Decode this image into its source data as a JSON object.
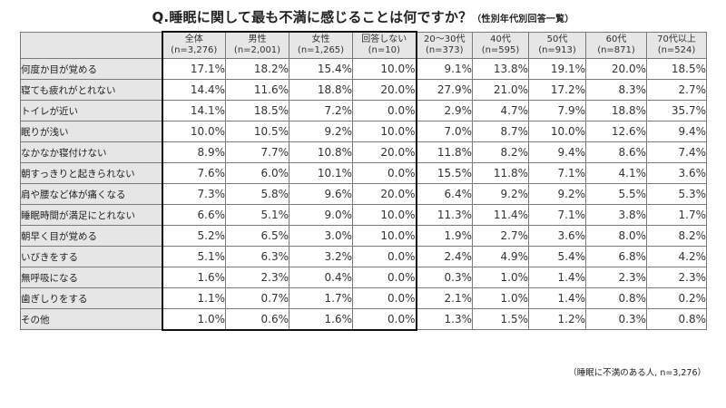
{
  "title": {
    "main": "Q.睡眠に関して最も不満に感じることは何ですか？",
    "sub": "（性別年代別回答一覧）"
  },
  "table": {
    "columns": [
      {
        "label": "全体",
        "n": "(n=3,276)"
      },
      {
        "label": "男性",
        "n": "(n=2,001)"
      },
      {
        "label": "女性",
        "n": "(n=1,265)"
      },
      {
        "label": "回答しない",
        "n": "(n=10)"
      },
      {
        "label": "20～30代",
        "n": "(n=373)"
      },
      {
        "label": "40代",
        "n": "(n=595)"
      },
      {
        "label": "50代",
        "n": "(n=913)"
      },
      {
        "label": "60代",
        "n": "(n=871)"
      },
      {
        "label": "70代以上",
        "n": "(n=524)"
      }
    ],
    "rows": [
      {
        "label": "何度か目が覚める",
        "values": [
          "17.1%",
          "18.2%",
          "15.4%",
          "10.0%",
          "9.1%",
          "13.8%",
          "19.1%",
          "20.0%",
          "18.5%"
        ]
      },
      {
        "label": "寝ても疲れがとれない",
        "values": [
          "14.4%",
          "11.6%",
          "18.8%",
          "20.0%",
          "27.9%",
          "21.0%",
          "17.2%",
          "8.3%",
          "2.7%"
        ]
      },
      {
        "label": "トイレが近い",
        "values": [
          "14.1%",
          "18.5%",
          "7.2%",
          "0.0%",
          "2.9%",
          "4.7%",
          "7.9%",
          "18.8%",
          "35.7%"
        ]
      },
      {
        "label": "眠りが浅い",
        "values": [
          "10.0%",
          "10.5%",
          "9.2%",
          "10.0%",
          "7.0%",
          "8.7%",
          "10.0%",
          "12.6%",
          "9.4%"
        ]
      },
      {
        "label": "なかなか寝付けない",
        "values": [
          "8.9%",
          "7.7%",
          "10.8%",
          "20.0%",
          "11.8%",
          "8.2%",
          "9.4%",
          "8.6%",
          "7.4%"
        ]
      },
      {
        "label": "朝すっきりと起きられない",
        "values": [
          "7.6%",
          "6.0%",
          "10.1%",
          "0.0%",
          "15.5%",
          "11.8%",
          "7.1%",
          "4.1%",
          "3.6%"
        ]
      },
      {
        "label": "肩や腰など体が痛くなる",
        "values": [
          "7.3%",
          "5.8%",
          "9.6%",
          "20.0%",
          "6.4%",
          "9.2%",
          "9.2%",
          "5.5%",
          "5.3%"
        ]
      },
      {
        "label": "睡眠時間が満足にとれない",
        "values": [
          "6.6%",
          "5.1%",
          "9.0%",
          "10.0%",
          "11.3%",
          "11.4%",
          "7.1%",
          "3.8%",
          "1.7%"
        ]
      },
      {
        "label": "朝早く目が覚める",
        "values": [
          "5.2%",
          "6.5%",
          "3.0%",
          "10.0%",
          "1.9%",
          "2.7%",
          "3.6%",
          "8.0%",
          "8.2%"
        ]
      },
      {
        "label": "いびきをする",
        "values": [
          "5.1%",
          "6.3%",
          "3.2%",
          "0.0%",
          "2.4%",
          "4.9%",
          "5.4%",
          "6.8%",
          "4.2%"
        ]
      },
      {
        "label": "無呼吸になる",
        "values": [
          "1.6%",
          "2.3%",
          "0.4%",
          "0.0%",
          "0.3%",
          "1.0%",
          "1.4%",
          "2.3%",
          "2.3%"
        ]
      },
      {
        "label": "歯ぎしりをする",
        "values": [
          "1.1%",
          "0.7%",
          "1.7%",
          "0.0%",
          "2.1%",
          "1.0%",
          "1.4%",
          "0.8%",
          "0.2%"
        ]
      },
      {
        "label": "その他",
        "values": [
          "1.0%",
          "0.6%",
          "1.6%",
          "0.0%",
          "1.3%",
          "1.5%",
          "1.2%",
          "0.3%",
          "0.8%"
        ]
      }
    ]
  },
  "footnote": "（睡眠に不満のある人, n=3,276）",
  "colors": {
    "header_bg": "#e6e6e6",
    "label_bg": "#e6e6e6",
    "highlight_border": "#111111"
  }
}
